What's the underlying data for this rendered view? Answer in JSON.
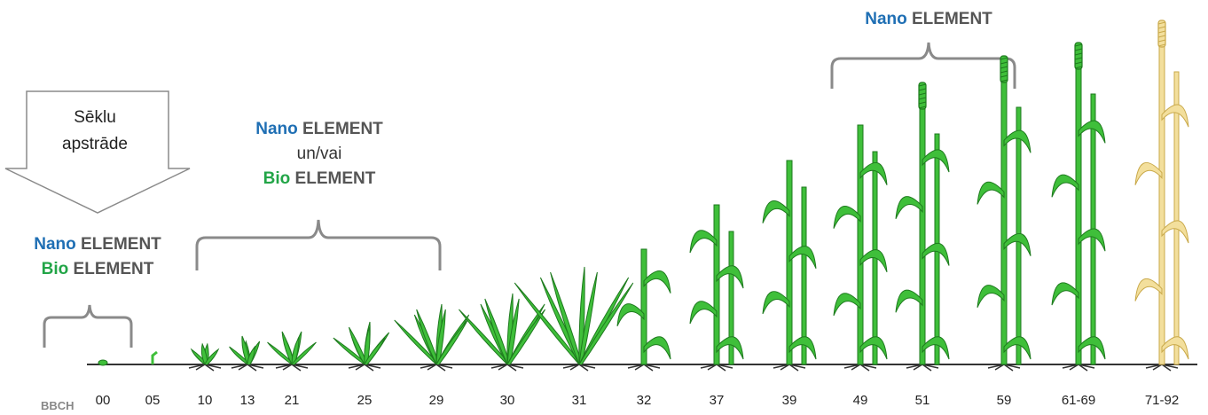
{
  "seed_box": {
    "line1": "Sēklu",
    "line2": "apstrāde"
  },
  "label_left": {
    "nano": "Nano",
    "nano_el": "ELEMENT",
    "bio": "Bio",
    "bio_el": "ELEMENT"
  },
  "label_mid": {
    "nano": "Nano",
    "nano_el": "ELEMENT",
    "conj": "un/vai",
    "bio": "Bio",
    "bio_el": "ELEMENT"
  },
  "label_right": {
    "nano": "Nano",
    "nano_el": "ELEMENT"
  },
  "scale": {
    "name": "BBCH",
    "stages": [
      "00",
      "05",
      "10",
      "13",
      "21",
      "25",
      "29",
      "30",
      "31",
      "32",
      "37",
      "39",
      "49",
      "51",
      "59",
      "61-69",
      "71-92"
    ]
  },
  "colors": {
    "nano": "#1f6fb4",
    "bio": "#22a547",
    "text_gray": "#555555",
    "plant": "#3fbf3a",
    "plant_dark": "#1e7a1e",
    "ripe": "#f3df9c",
    "bracket": "#8a8a8a"
  }
}
